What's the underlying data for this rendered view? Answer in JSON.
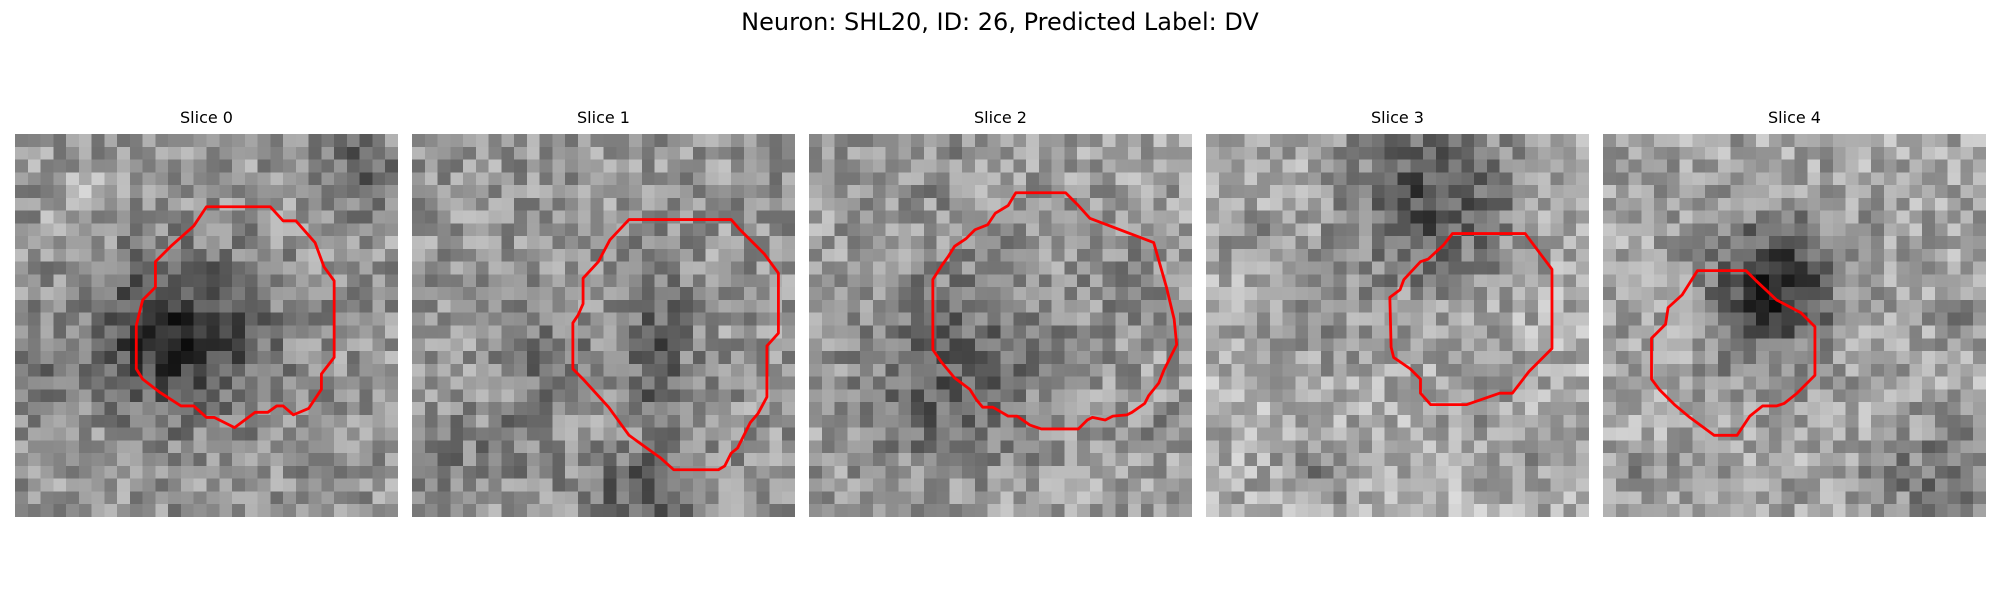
{
  "figure": {
    "suptitle": "Neuron: SHL20, ID: 26, Predicted Label: DV"
  },
  "contour_color": "#ff0000",
  "colormap": "gray",
  "panels": [
    {
      "title": "Slice 0"
    },
    {
      "title": "Slice 1"
    },
    {
      "title": "Slice 2"
    },
    {
      "title": "Slice 3"
    },
    {
      "title": "Slice 4"
    }
  ]
}
